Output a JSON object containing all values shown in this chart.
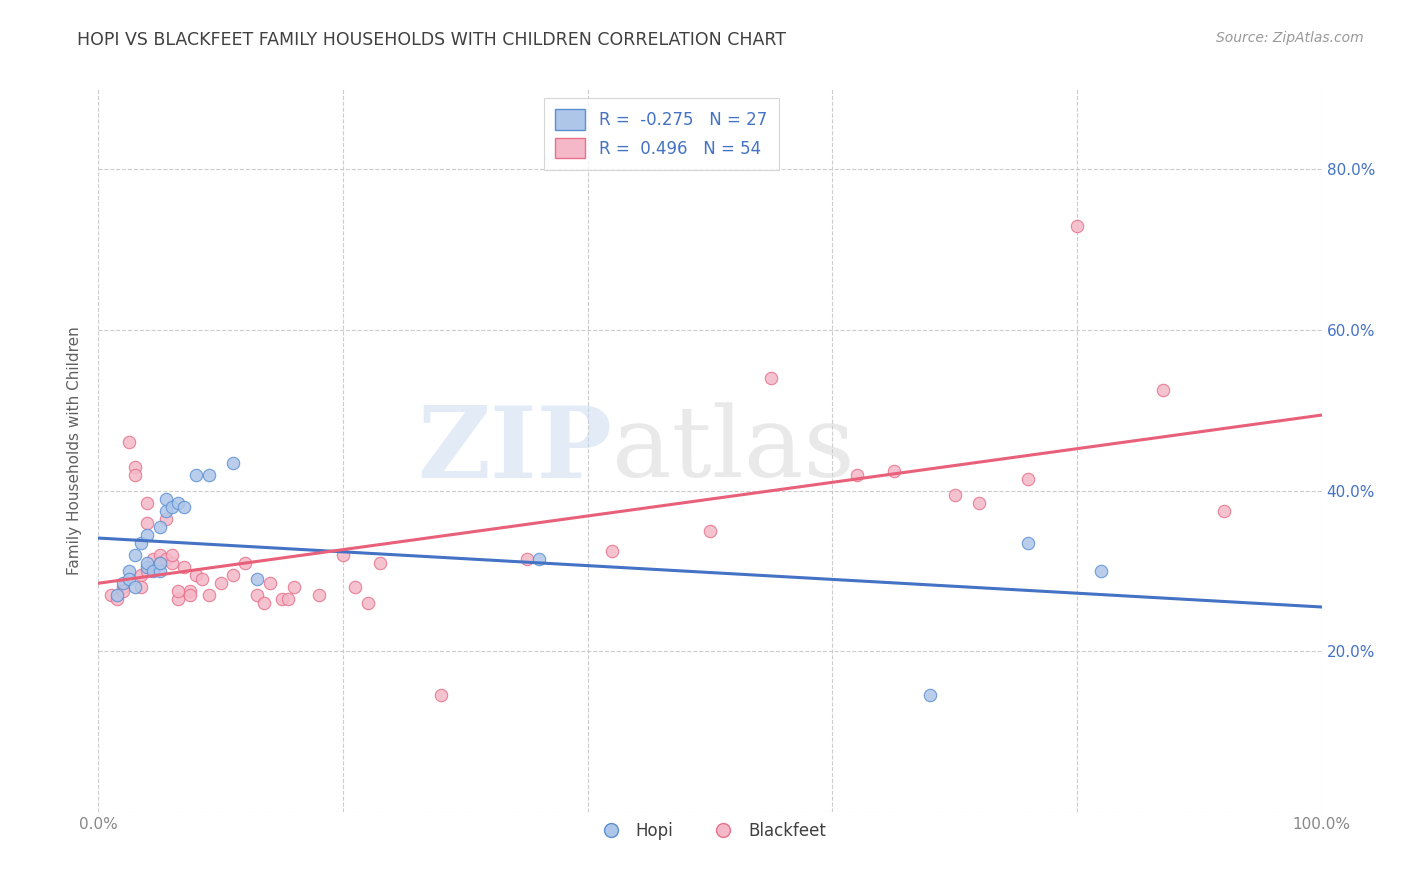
{
  "title": "HOPI VS BLACKFEET FAMILY HOUSEHOLDS WITH CHILDREN CORRELATION CHART",
  "source": "Source: ZipAtlas.com",
  "xlabel": "",
  "ylabel": "Family Households with Children",
  "xlim": [
    0.0,
    1.0
  ],
  "ylim": [
    0.0,
    0.9
  ],
  "x_ticks": [
    0.0,
    0.2,
    0.4,
    0.6,
    0.8,
    1.0
  ],
  "x_tick_labels": [
    "0.0%",
    "",
    "",
    "",
    "",
    "100.0%"
  ],
  "y_ticks": [
    0.0,
    0.2,
    0.4,
    0.6,
    0.8
  ],
  "y_tick_labels_left": [
    "",
    "",
    "",
    "",
    ""
  ],
  "y_tick_labels_right": [
    "",
    "20.0%",
    "40.0%",
    "60.0%",
    "80.0%"
  ],
  "hopi_color": "#AEC6E8",
  "blackfeet_color": "#F4B8C8",
  "hopi_edge_color": "#5B8FD4",
  "blackfeet_edge_color": "#E8708A",
  "hopi_line_color": "#4472C4",
  "blackfeet_line_color": "#E8607A",
  "hopi_R": -0.275,
  "hopi_N": 27,
  "blackfeet_R": 0.496,
  "blackfeet_N": 54,
  "watermark_zip": "ZIP",
  "watermark_atlas": "atlas",
  "legend_labels": [
    "Hopi",
    "Blackfeet"
  ],
  "hopi_x": [
    0.015,
    0.02,
    0.025,
    0.025,
    0.03,
    0.03,
    0.035,
    0.04,
    0.04,
    0.04,
    0.045,
    0.05,
    0.05,
    0.05,
    0.055,
    0.055,
    0.06,
    0.065,
    0.07,
    0.08,
    0.09,
    0.11,
    0.13,
    0.36,
    0.68,
    0.76,
    0.82
  ],
  "hopi_y": [
    0.27,
    0.285,
    0.3,
    0.29,
    0.32,
    0.28,
    0.335,
    0.305,
    0.31,
    0.345,
    0.3,
    0.3,
    0.31,
    0.355,
    0.375,
    0.39,
    0.38,
    0.385,
    0.38,
    0.42,
    0.42,
    0.435,
    0.29,
    0.315,
    0.145,
    0.335,
    0.3
  ],
  "blackfeet_x": [
    0.01,
    0.015,
    0.02,
    0.02,
    0.025,
    0.03,
    0.03,
    0.035,
    0.035,
    0.04,
    0.04,
    0.04,
    0.045,
    0.05,
    0.05,
    0.055,
    0.055,
    0.06,
    0.06,
    0.065,
    0.065,
    0.07,
    0.075,
    0.075,
    0.08,
    0.085,
    0.09,
    0.1,
    0.11,
    0.12,
    0.13,
    0.135,
    0.14,
    0.15,
    0.155,
    0.16,
    0.18,
    0.2,
    0.21,
    0.22,
    0.23,
    0.28,
    0.35,
    0.42,
    0.5,
    0.55,
    0.62,
    0.65,
    0.7,
    0.72,
    0.76,
    0.8,
    0.87,
    0.92
  ],
  "blackfeet_y": [
    0.27,
    0.265,
    0.28,
    0.275,
    0.46,
    0.43,
    0.42,
    0.295,
    0.28,
    0.3,
    0.385,
    0.36,
    0.315,
    0.32,
    0.31,
    0.365,
    0.315,
    0.31,
    0.32,
    0.265,
    0.275,
    0.305,
    0.275,
    0.27,
    0.295,
    0.29,
    0.27,
    0.285,
    0.295,
    0.31,
    0.27,
    0.26,
    0.285,
    0.265,
    0.265,
    0.28,
    0.27,
    0.32,
    0.28,
    0.26,
    0.31,
    0.145,
    0.315,
    0.325,
    0.35,
    0.54,
    0.42,
    0.425,
    0.395,
    0.385,
    0.415,
    0.73,
    0.525,
    0.375
  ],
  "background_color": "#FFFFFF",
  "grid_color": "#CCCCCC",
  "title_color": "#404040",
  "axis_label_color": "#606060",
  "tick_label_color": "#888888",
  "right_tick_color": "#4472C4",
  "legend_text_color": "#4472C4"
}
